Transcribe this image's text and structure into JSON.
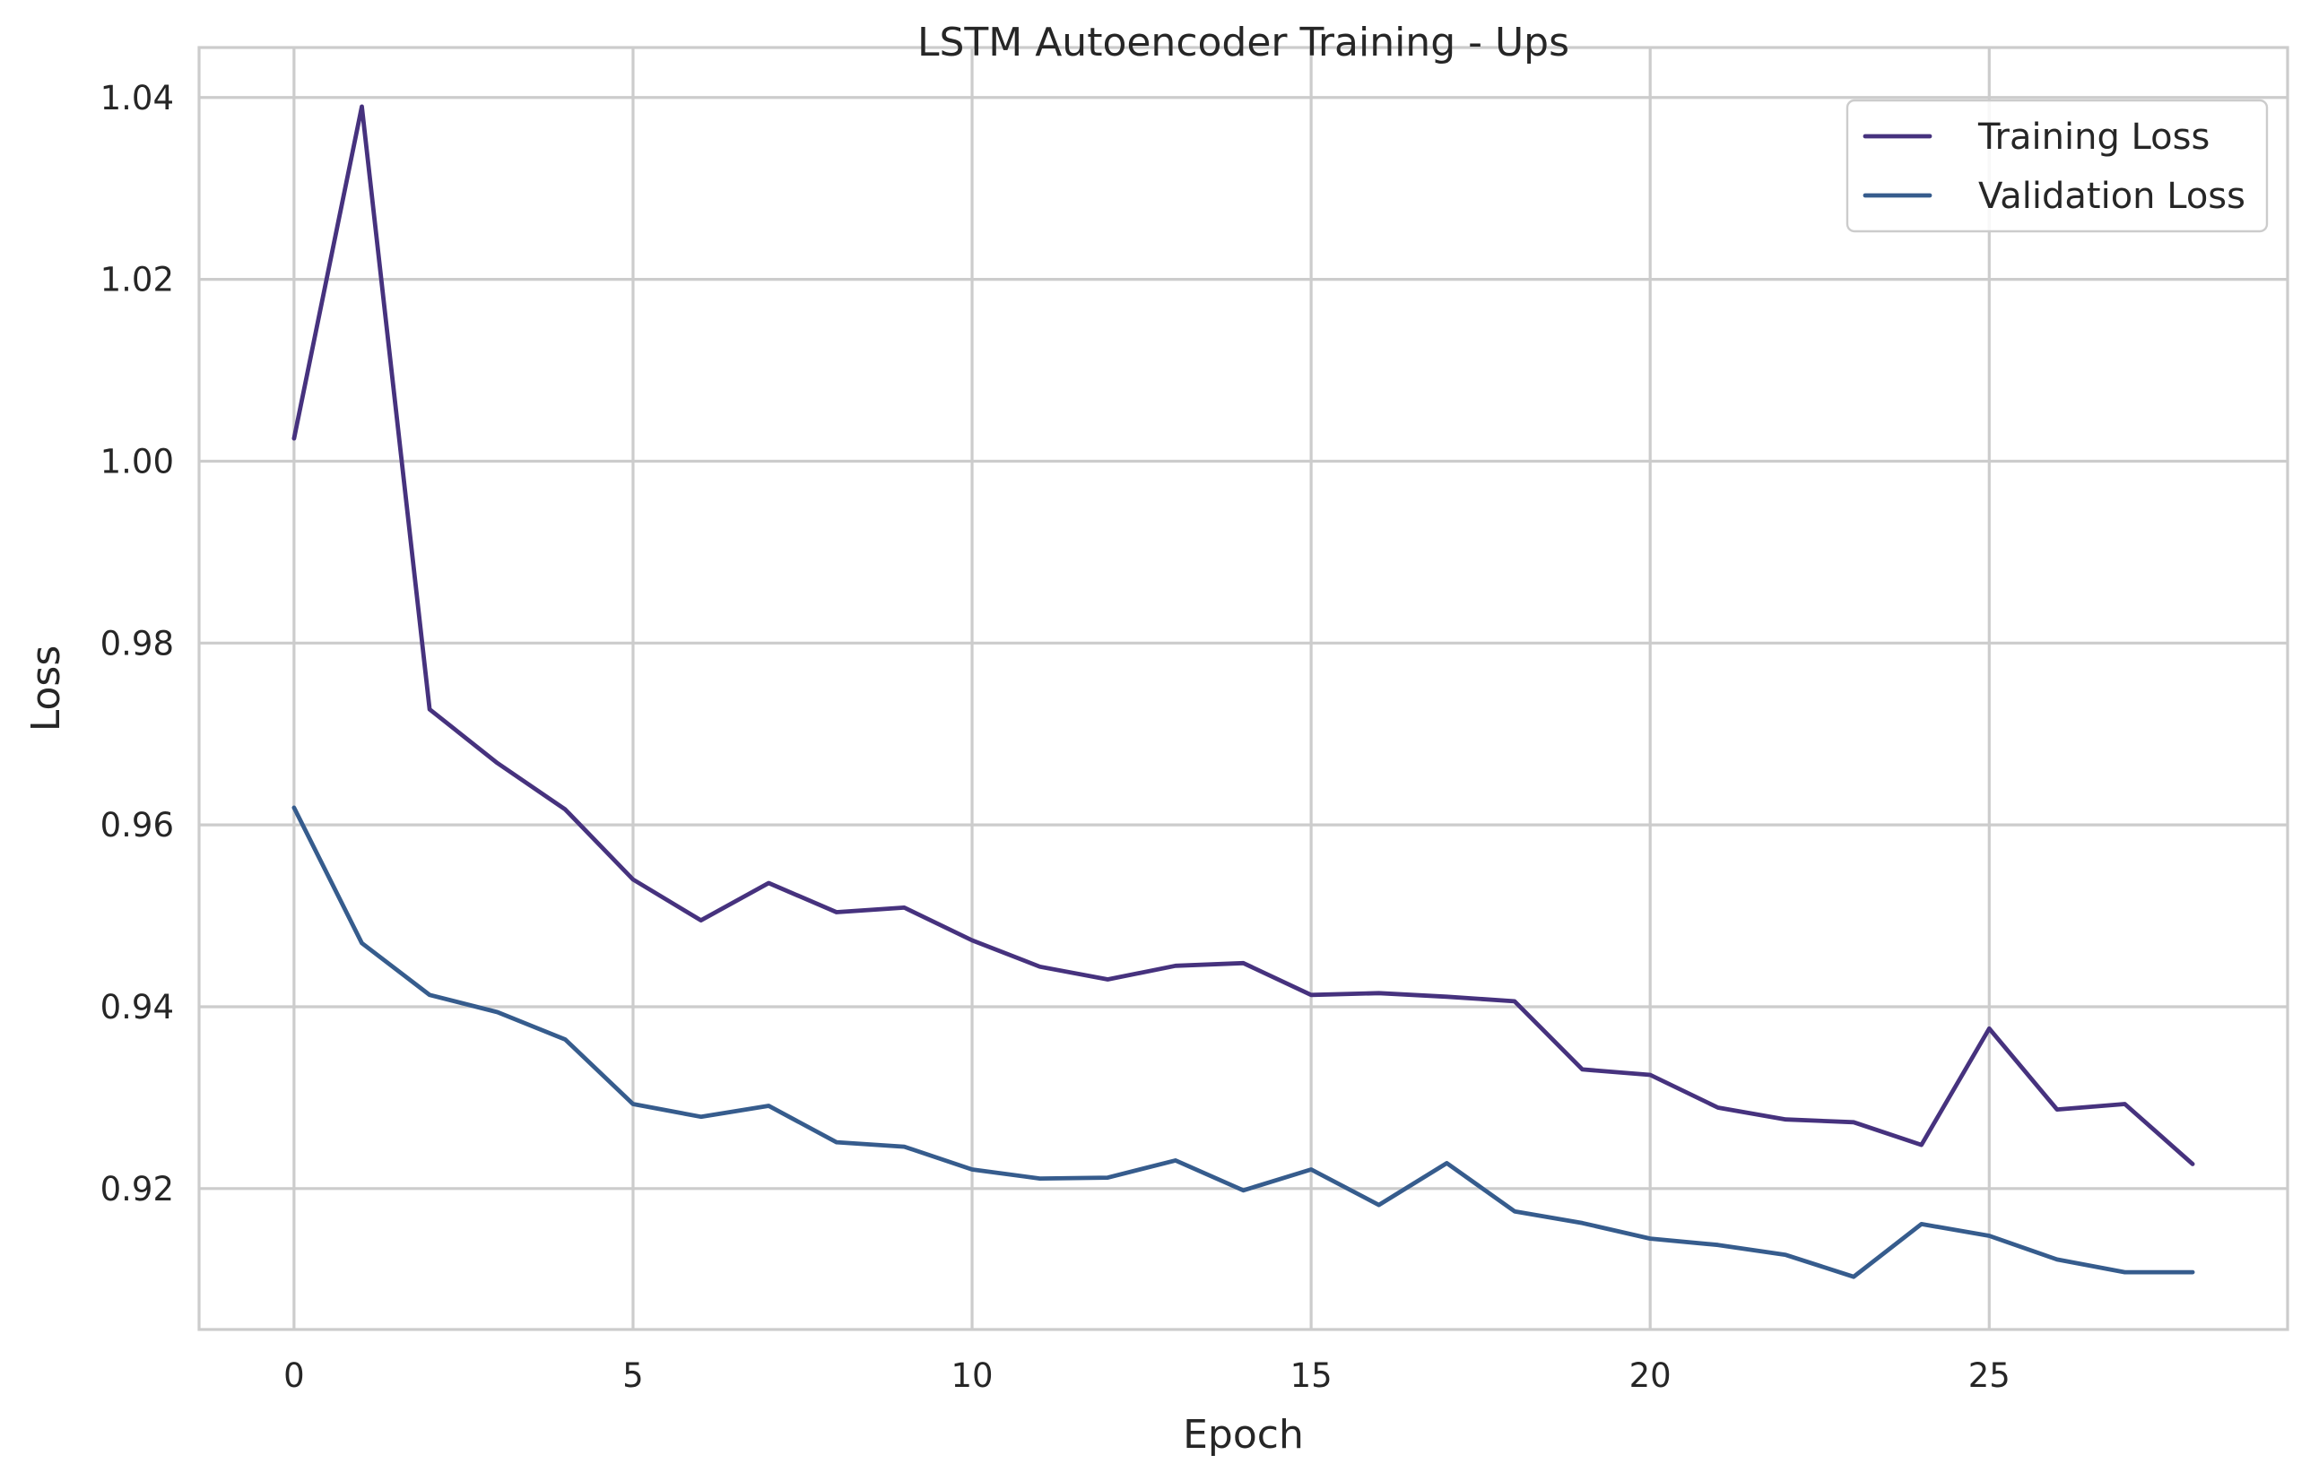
{
  "chart_data": {
    "type": "line",
    "title": "LSTM Autoencoder Training - Ups",
    "xlabel": "Epoch",
    "ylabel": "Loss",
    "xlim": [
      -1.4,
      29.4
    ],
    "ylim": [
      0.9045,
      1.0455
    ],
    "xticks": [
      0,
      5,
      10,
      15,
      20,
      25
    ],
    "yticks": [
      0.92,
      0.94,
      0.96,
      0.98,
      1.0,
      1.02,
      1.04
    ],
    "ytick_labels": [
      "0.92",
      "0.94",
      "0.96",
      "0.98",
      "1.00",
      "1.02",
      "1.04"
    ],
    "grid": true,
    "legend_position": "top-right",
    "x": [
      0,
      1,
      2,
      3,
      4,
      5,
      6,
      7,
      8,
      9,
      10,
      11,
      12,
      13,
      14,
      15,
      16,
      17,
      18,
      19,
      20,
      21,
      22,
      23,
      24,
      25,
      26,
      27,
      28
    ],
    "series": [
      {
        "name": "Training Loss",
        "color": "#46327e",
        "values": [
          1.0025,
          1.039,
          0.9727,
          0.9668,
          0.9617,
          0.954,
          0.9495,
          0.9536,
          0.9504,
          0.9509,
          0.9473,
          0.9444,
          0.943,
          0.9445,
          0.9448,
          0.9413,
          0.9415,
          0.9411,
          0.9406,
          0.9331,
          0.9325,
          0.9289,
          0.9276,
          0.9273,
          0.9248,
          0.9376,
          0.9287,
          0.9293,
          0.9227
        ]
      },
      {
        "name": "Validation Loss",
        "color": "#365c8d",
        "values": [
          0.9619,
          0.947,
          0.9413,
          0.9394,
          0.9364,
          0.9293,
          0.9279,
          0.9291,
          0.9251,
          0.9246,
          0.9221,
          0.9211,
          0.9212,
          0.9231,
          0.9198,
          0.9221,
          0.9182,
          0.9228,
          0.9175,
          0.9162,
          0.9145,
          0.9138,
          0.9127,
          0.9103,
          0.9161,
          0.9148,
          0.9122,
          0.9108,
          0.9108
        ]
      }
    ]
  }
}
